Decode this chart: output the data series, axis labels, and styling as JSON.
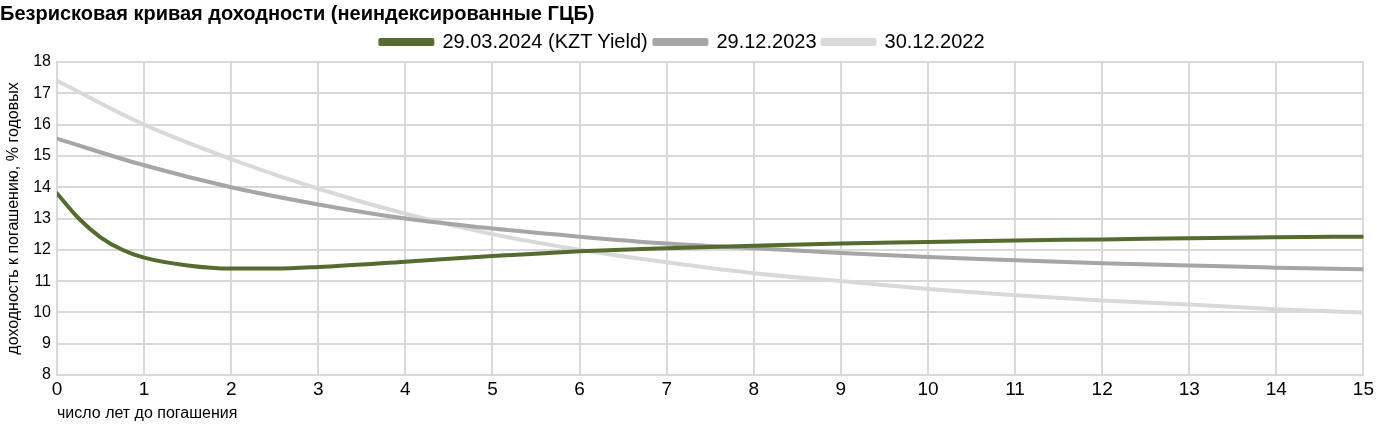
{
  "chart_data": {
    "type": "line",
    "title": "Безрисковая кривая доходности (неиндексированные ГЦБ)",
    "xlabel": "число лет до погашения",
    "ylabel": "доходность к погашению, % годовых",
    "xlim": [
      0,
      15
    ],
    "xticks": [
      0,
      1,
      2,
      3,
      4,
      5,
      6,
      7,
      8,
      9,
      10,
      11,
      12,
      13,
      14,
      15
    ],
    "ylim": [
      8,
      18
    ],
    "yticks": [
      8,
      9,
      10,
      11,
      12,
      13,
      14,
      15,
      16,
      17,
      18
    ],
    "grid": true,
    "legend": "top",
    "marker": "none",
    "line_style": "solid",
    "series": [
      {
        "name": "29.03.2024 (KZT Yield)",
        "color": "#556b2f",
        "x": [
          0,
          0.25,
          0.5,
          0.75,
          1,
          1.5,
          2,
          2.5,
          3,
          4,
          5,
          6,
          7,
          8,
          9,
          10,
          11,
          12,
          13,
          14,
          15
        ],
        "values": [
          13.8,
          13.0,
          12.4,
          12.0,
          11.75,
          11.5,
          11.4,
          11.4,
          11.45,
          11.62,
          11.8,
          11.95,
          12.05,
          12.13,
          12.2,
          12.25,
          12.3,
          12.33,
          12.37,
          12.4,
          12.42
        ]
      },
      {
        "name": "29.12.2023",
        "color": "#a6a6a6",
        "x": [
          0,
          1,
          2,
          3,
          4,
          5,
          6,
          7,
          8,
          9,
          10,
          11,
          12,
          13,
          14,
          15
        ],
        "values": [
          15.55,
          14.7,
          14.0,
          13.45,
          13.0,
          12.68,
          12.42,
          12.2,
          12.05,
          11.9,
          11.77,
          11.67,
          11.57,
          11.5,
          11.43,
          11.38
        ]
      },
      {
        "name": "30.12.2022",
        "color": "#d9d9d9",
        "x": [
          0,
          1,
          2,
          3,
          4,
          5,
          6,
          7,
          8,
          9,
          10,
          11,
          12,
          13,
          14,
          15
        ],
        "values": [
          17.4,
          16.0,
          14.9,
          13.95,
          13.15,
          12.5,
          12.0,
          11.6,
          11.25,
          11.0,
          10.75,
          10.55,
          10.38,
          10.25,
          10.1,
          10.0
        ]
      }
    ]
  }
}
